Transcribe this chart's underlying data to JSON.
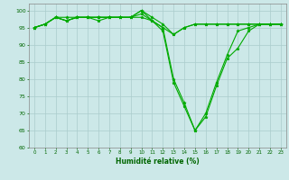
{
  "title": "",
  "xlabel": "Humidité relative (%)",
  "ylabel": "",
  "bg_color": "#cce8e8",
  "grid_color": "#aacccc",
  "line_color": "#00aa00",
  "marker_color": "#00aa00",
  "xlim": [
    -0.5,
    23.5
  ],
  "ylim": [
    60,
    102
  ],
  "yticks": [
    60,
    65,
    70,
    75,
    80,
    85,
    90,
    95,
    100
  ],
  "xticks": [
    0,
    1,
    2,
    3,
    4,
    5,
    6,
    7,
    8,
    9,
    10,
    11,
    12,
    13,
    14,
    15,
    16,
    17,
    18,
    19,
    20,
    21,
    22,
    23
  ],
  "series": [
    [
      95,
      96,
      98,
      97,
      98,
      98,
      98,
      98,
      98,
      98,
      100,
      97,
      94,
      79,
      72,
      65,
      69,
      78,
      86,
      89,
      94,
      96,
      96,
      96
    ],
    [
      95,
      96,
      98,
      97,
      98,
      98,
      97,
      98,
      98,
      98,
      99,
      97,
      95,
      80,
      73,
      65,
      70,
      79,
      87,
      94,
      95,
      96,
      96,
      96
    ],
    [
      95,
      96,
      98,
      97,
      98,
      98,
      98,
      98,
      98,
      98,
      100,
      98,
      96,
      93,
      95,
      96,
      96,
      96,
      96,
      96,
      96,
      96,
      96,
      96
    ],
    [
      95,
      96,
      98,
      98,
      98,
      98,
      98,
      98,
      98,
      98,
      98,
      97,
      95,
      93,
      95,
      96,
      96,
      96,
      96,
      96,
      96,
      96,
      96,
      96
    ]
  ]
}
